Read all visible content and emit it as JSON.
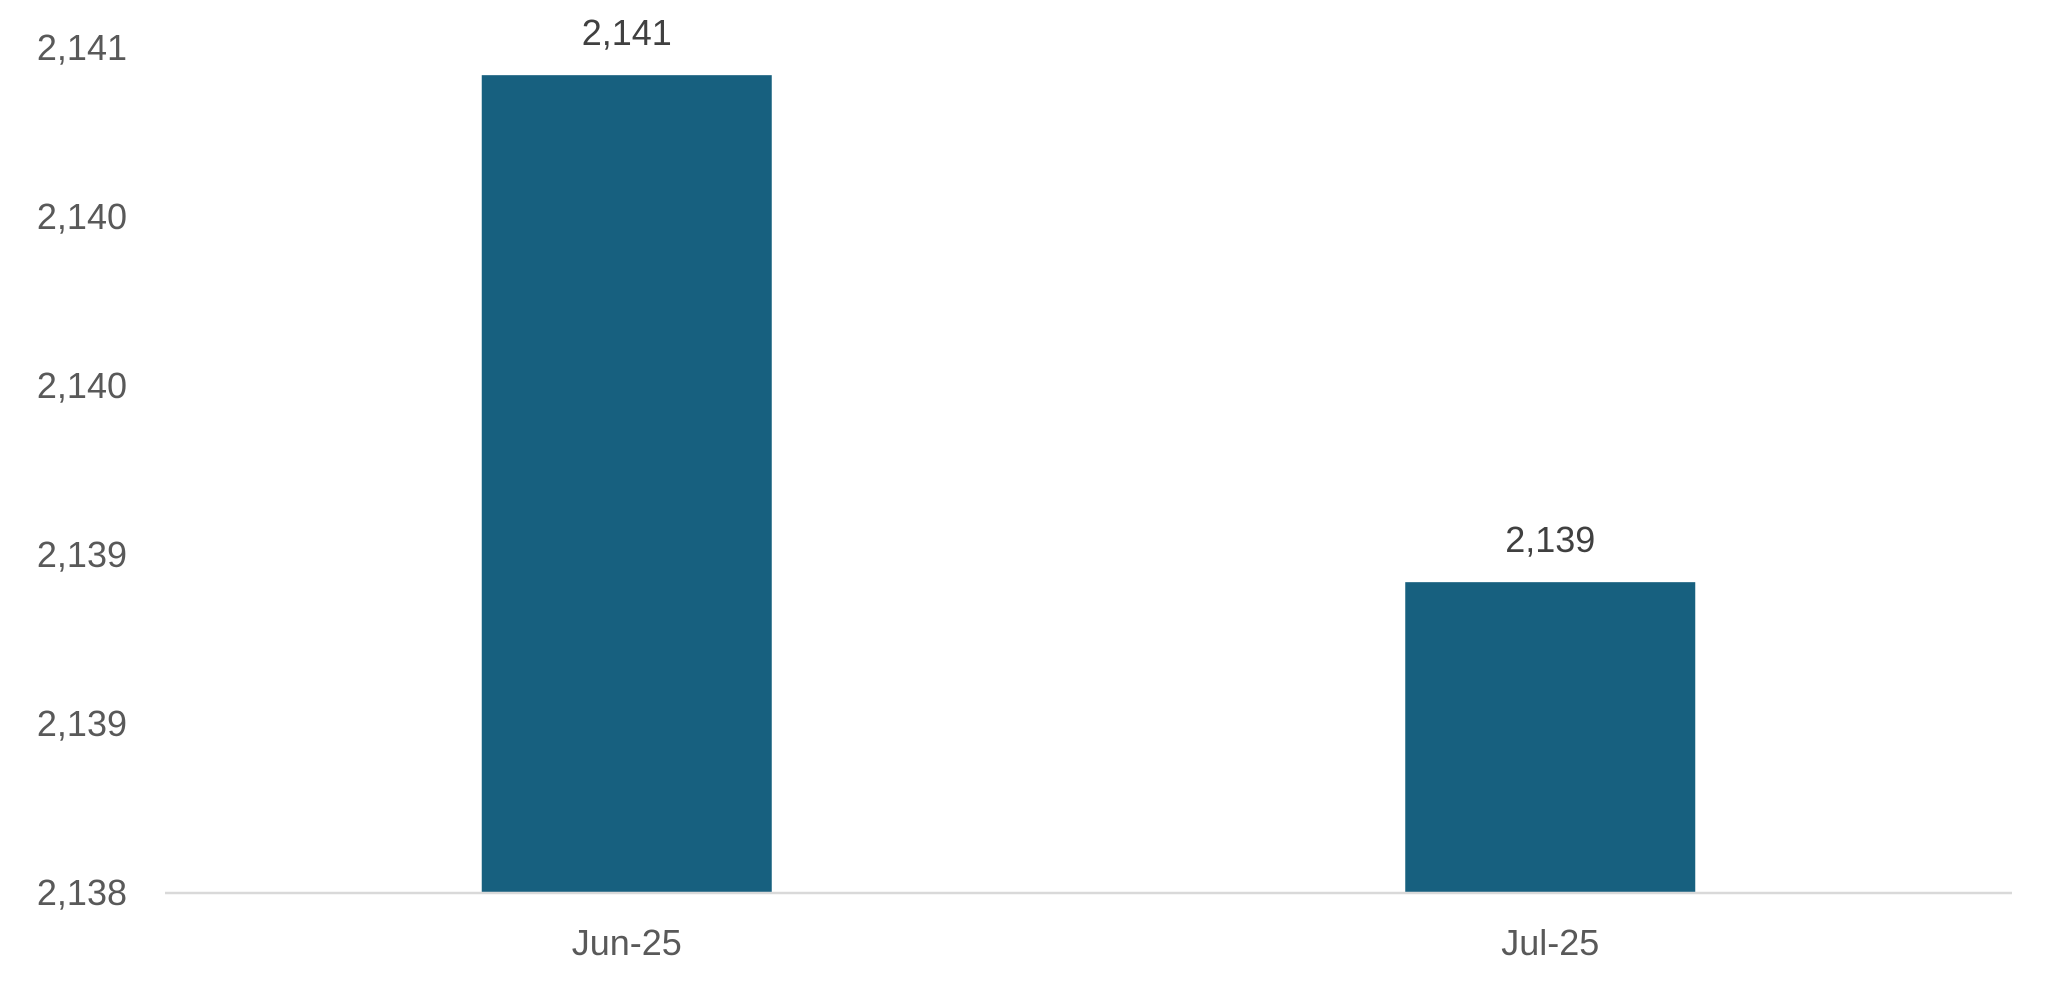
{
  "chart_data": {
    "type": "bar",
    "categories": [
      "Jun-25",
      "Jul-25"
    ],
    "values": [
      2140.9,
      2139.1
    ],
    "data_labels": [
      "2,141",
      "2,139"
    ],
    "ylim": [
      2138,
      2141.2
    ],
    "y_ticks": [
      2138.0,
      2138.6,
      2139.2,
      2139.8,
      2140.4,
      2141.0
    ],
    "y_tick_labels": [
      "2,138",
      "2,139",
      "2,139",
      "2,140",
      "2,140",
      "2,141"
    ],
    "grid": false,
    "legend": "none",
    "colors": {
      "bar": "#17607f",
      "axis": "#d9d9d9"
    }
  }
}
